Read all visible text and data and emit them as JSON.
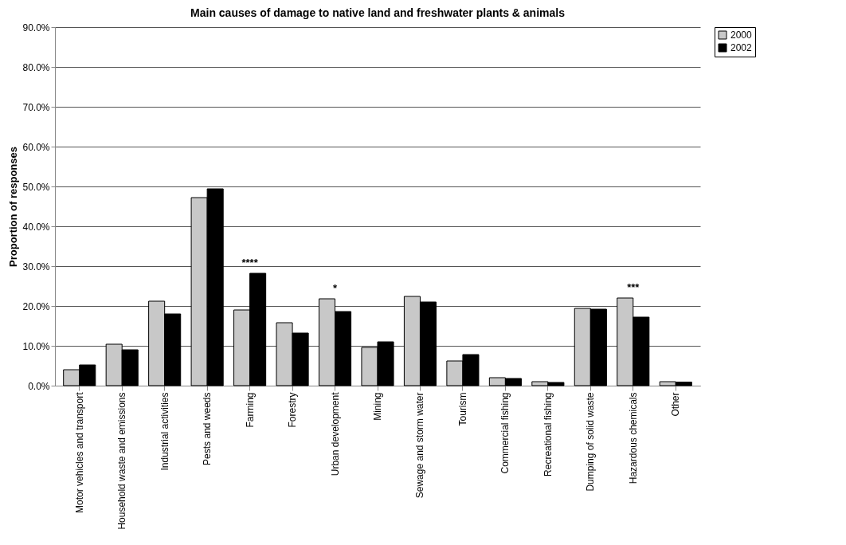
{
  "chart_data": {
    "type": "bar",
    "title": "Main causes of damage to native land and freshwater plants & animals",
    "ylabel": "Proportion of responses",
    "categories": [
      "Motor vehicles and transport",
      "Household waste and emissions",
      "Industrial activities",
      "Pests and weeds",
      "Farming",
      "Forestry",
      "Urban development",
      "Mining",
      "Sewage and storm water",
      "Tourism",
      "Commercial fishing",
      "Recreational fishing",
      "Dumping of solid waste",
      "Hazardous chemicals",
      "Other"
    ],
    "series": [
      {
        "name": "2000",
        "color": "#c8c8c8",
        "values": [
          4.0,
          10.4,
          21.2,
          47.2,
          19.0,
          15.8,
          21.8,
          9.6,
          22.4,
          6.2,
          2.0,
          1.0,
          19.4,
          22.0,
          1.0
        ]
      },
      {
        "name": "2002",
        "color": "#000000",
        "values": [
          5.2,
          9.0,
          18.0,
          49.4,
          28.2,
          13.2,
          18.6,
          11.0,
          21.0,
          7.8,
          1.8,
          0.8,
          19.2,
          17.2,
          0.9
        ]
      }
    ],
    "ylim": [
      0,
      90
    ],
    "yticks": [
      {
        "value": 0,
        "label": "0.0%"
      },
      {
        "value": 10,
        "label": "10.0%"
      },
      {
        "value": 20,
        "label": "20.0%"
      },
      {
        "value": 30,
        "label": "30.0%"
      },
      {
        "value": 40,
        "label": "40.0%"
      },
      {
        "value": 50,
        "label": "50.0%"
      },
      {
        "value": 60,
        "label": "60.0%"
      },
      {
        "value": 70,
        "label": "70.0%"
      },
      {
        "value": 80,
        "label": "80.0%"
      },
      {
        "value": 90,
        "label": "90.0%"
      }
    ],
    "annotations": [
      {
        "text": "****",
        "x": "Farming",
        "y": 28.2
      },
      {
        "text": "*",
        "x": "Urban development",
        "y": 21.8
      },
      {
        "text": "***",
        "x": "Hazardous chemicals",
        "y": 22.0
      }
    ],
    "grid": "y",
    "legend": "right"
  }
}
